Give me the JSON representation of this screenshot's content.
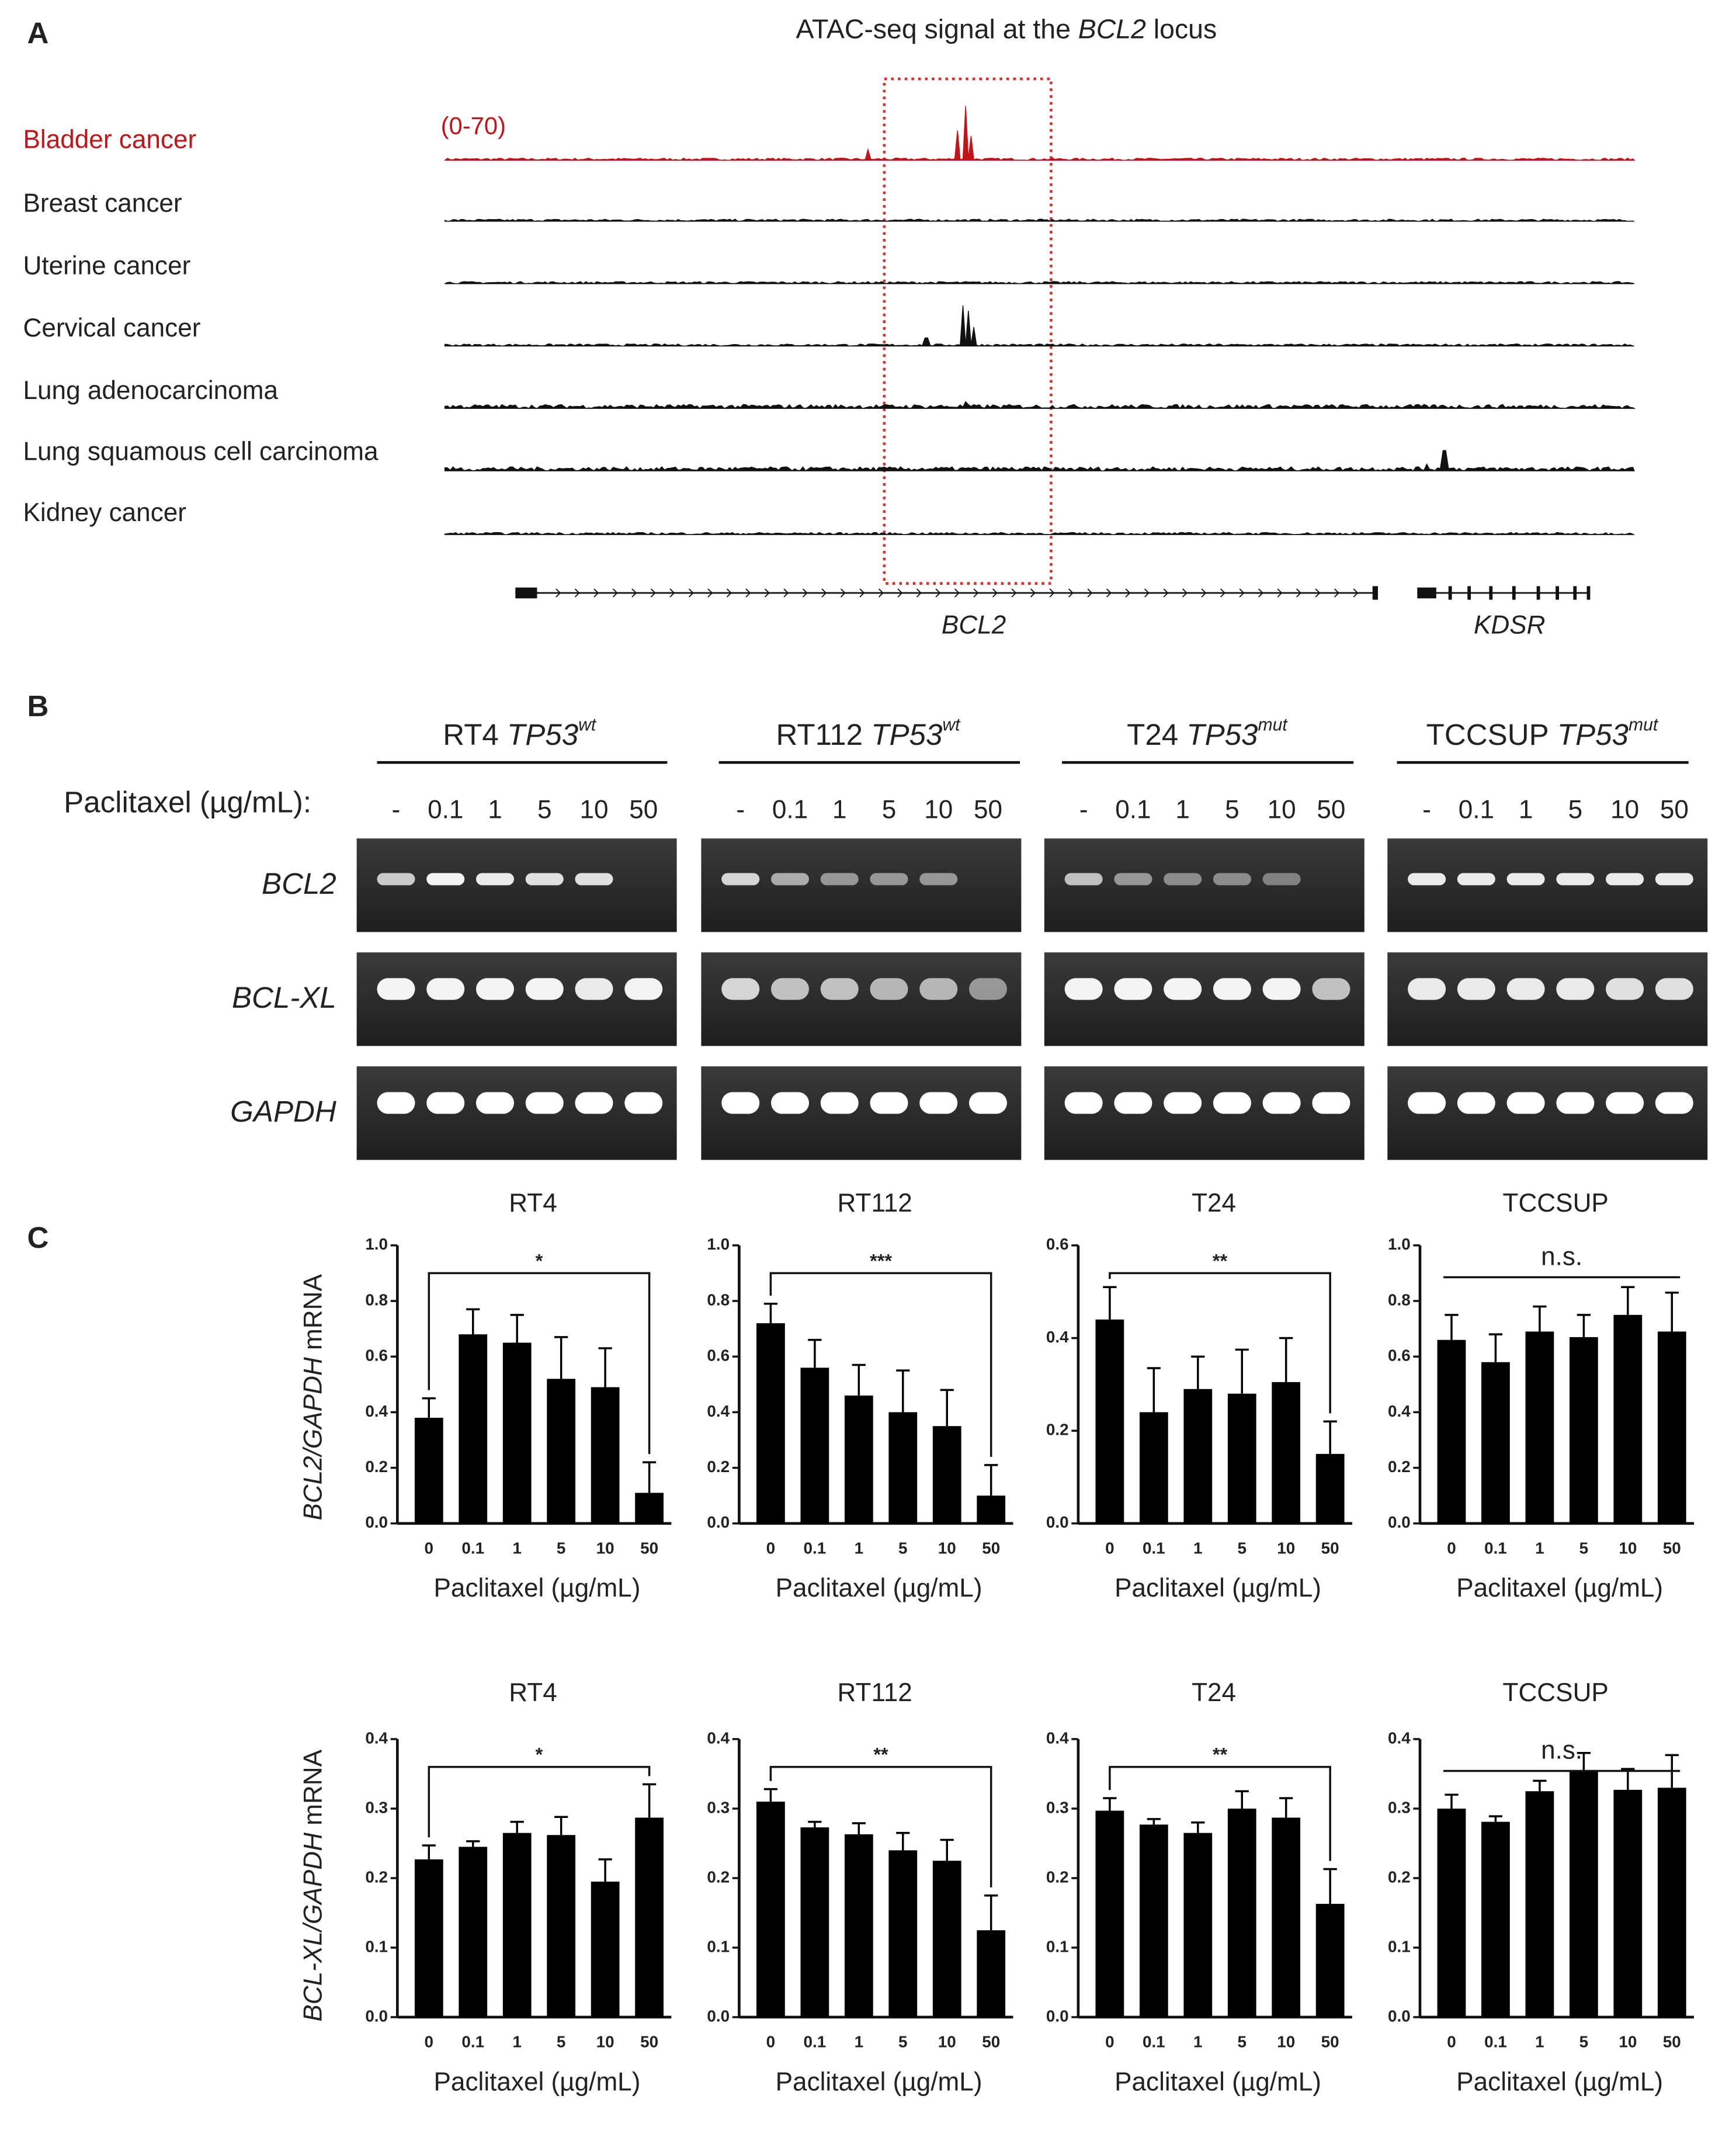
{
  "panel_a": {
    "label": "A",
    "title": {
      "prefix": "ATAC-seq signal at the ",
      "gene": "BCL2",
      "suffix": " locus"
    },
    "range_label": "(0-70)",
    "tracks": [
      "Bladder cancer",
      "Breast cancer",
      "Uterine cancer",
      "Cervical cancer",
      "Lung adenocarcinoma",
      "Lung squamous cell carcinoma",
      "Kidney cancer"
    ],
    "genes": [
      "BCL2",
      "KDSR"
    ]
  },
  "panel_b": {
    "label": "B",
    "treatment_label": "Paclitaxel (µg/mL):",
    "doses": [
      "-",
      "0.1",
      "1",
      "5",
      "10",
      "50"
    ],
    "cell_lines": [
      {
        "name": "RT4",
        "gene": "TP53",
        "status": "wt"
      },
      {
        "name": "RT112",
        "gene": "TP53",
        "status": "wt"
      },
      {
        "name": "T24",
        "gene": "TP53",
        "status": "mut"
      },
      {
        "name": "TCCSUP",
        "gene": "TP53",
        "status": "mut"
      }
    ],
    "genes": [
      "BCL2",
      "BCL-XL",
      "GAPDH"
    ]
  },
  "panel_c_label": "C",
  "chart_data": [
    {
      "type": "bar",
      "title": "RT4",
      "categories": [
        "0",
        "0.1",
        "1",
        "5",
        "10",
        "50"
      ],
      "values": [
        0.38,
        0.68,
        0.65,
        0.52,
        0.49,
        0.11
      ],
      "errors": [
        0.07,
        0.09,
        0.1,
        0.15,
        0.14,
        0.11
      ],
      "color": "#000000",
      "ylim": [
        0,
        1
      ],
      "yticks": [
        {
          "value": 0,
          "label": "0.0"
        },
        {
          "value": 0.2,
          "label": "0.2"
        },
        {
          "value": 0.4,
          "label": "0.4"
        },
        {
          "value": 0.6,
          "label": "0.6"
        },
        {
          "value": 0.8,
          "label": "0.8"
        },
        {
          "value": 1,
          "label": "1.0"
        }
      ],
      "xlabel": "Paclitaxel (µg/mL)",
      "ylabel": [
        {
          "text": "BCL2/GAPDH",
          "italic": true
        },
        {
          "text": " mRNA",
          "italic": false
        }
      ],
      "significance": {
        "label": "*",
        "bracket": true
      }
    },
    {
      "type": "bar",
      "title": "RT112",
      "categories": [
        "0",
        "0.1",
        "1",
        "5",
        "10",
        "50"
      ],
      "values": [
        0.72,
        0.56,
        0.46,
        0.4,
        0.35,
        0.1
      ],
      "errors": [
        0.07,
        0.1,
        0.11,
        0.15,
        0.13,
        0.11
      ],
      "color": "#000000",
      "ylim": [
        0,
        1
      ],
      "yticks": [
        {
          "value": 0,
          "label": "0.0"
        },
        {
          "value": 0.2,
          "label": "0.2"
        },
        {
          "value": 0.4,
          "label": "0.4"
        },
        {
          "value": 0.6,
          "label": "0.6"
        },
        {
          "value": 0.8,
          "label": "0.8"
        },
        {
          "value": 1,
          "label": "1.0"
        }
      ],
      "xlabel": "Paclitaxel (µg/mL)",
      "significance": {
        "label": "***",
        "bracket": true
      }
    },
    {
      "type": "bar",
      "title": "T24",
      "categories": [
        "0",
        "0.1",
        "1",
        "5",
        "10",
        "50"
      ],
      "values": [
        0.44,
        0.24,
        0.29,
        0.28,
        0.305,
        0.15
      ],
      "errors": [
        0.07,
        0.095,
        0.07,
        0.095,
        0.095,
        0.07
      ],
      "color": "#000000",
      "ylim": [
        0,
        0.6
      ],
      "yticks": [
        {
          "value": 0,
          "label": "0.0"
        },
        {
          "value": 0.2,
          "label": "0.2"
        },
        {
          "value": 0.4,
          "label": "0.4"
        },
        {
          "value": 0.6,
          "label": "0.6"
        }
      ],
      "xlabel": "Paclitaxel (µg/mL)",
      "significance": {
        "label": "**",
        "bracket": true
      }
    },
    {
      "type": "bar",
      "title": "TCCSUP",
      "categories": [
        "0",
        "0.1",
        "1",
        "5",
        "10",
        "50"
      ],
      "values": [
        0.66,
        0.58,
        0.69,
        0.67,
        0.75,
        0.69
      ],
      "errors": [
        0.09,
        0.1,
        0.09,
        0.08,
        0.1,
        0.14
      ],
      "color": "#000000",
      "ylim": [
        0,
        1
      ],
      "yticks": [
        {
          "value": 0,
          "label": "0.0"
        },
        {
          "value": 0.2,
          "label": "0.2"
        },
        {
          "value": 0.4,
          "label": "0.4"
        },
        {
          "value": 0.6,
          "label": "0.6"
        },
        {
          "value": 0.8,
          "label": "0.8"
        },
        {
          "value": 1,
          "label": "1.0"
        }
      ],
      "xlabel": "Paclitaxel (µg/mL)",
      "significance": {
        "label": "n.s.",
        "bracket": false
      }
    },
    {
      "type": "bar",
      "title": "RT4",
      "categories": [
        "0",
        "0.1",
        "1",
        "5",
        "10",
        "50"
      ],
      "values": [
        0.227,
        0.245,
        0.265,
        0.262,
        0.195,
        0.287
      ],
      "errors": [
        0.02,
        0.008,
        0.016,
        0.026,
        0.032,
        0.048
      ],
      "color": "#000000",
      "ylim": [
        0,
        0.4
      ],
      "yticks": [
        {
          "value": 0,
          "label": "0.0"
        },
        0.1,
        0.2,
        0.3,
        0.4
      ],
      "xlabel": "Paclitaxel (µg/mL)",
      "ylabel": [
        {
          "text": "BCL-XL/GAPDH",
          "italic": true
        },
        {
          "text": " mRNA",
          "italic": false
        }
      ],
      "significance": {
        "label": "*",
        "bracket": true
      }
    },
    {
      "type": "bar",
      "title": "RT112",
      "categories": [
        "0",
        "0.1",
        "1",
        "5",
        "10",
        "50"
      ],
      "values": [
        0.31,
        0.273,
        0.263,
        0.24,
        0.225,
        0.125
      ],
      "errors": [
        0.018,
        0.008,
        0.016,
        0.025,
        0.03,
        0.05
      ],
      "color": "#000000",
      "ylim": [
        0,
        0.4
      ],
      "yticks": [
        {
          "value": 0,
          "label": "0.0"
        },
        0.1,
        0.2,
        0.3,
        0.4
      ],
      "xlabel": "Paclitaxel (µg/mL)",
      "significance": {
        "label": "**",
        "bracket": true
      }
    },
    {
      "type": "bar",
      "title": "T24",
      "categories": [
        "0",
        "0.1",
        "1",
        "5",
        "10",
        "50"
      ],
      "values": [
        0.297,
        0.277,
        0.265,
        0.3,
        0.287,
        0.163
      ],
      "errors": [
        0.018,
        0.008,
        0.015,
        0.025,
        0.028,
        0.05
      ],
      "color": "#000000",
      "ylim": [
        0,
        0.4
      ],
      "yticks": [
        {
          "value": 0,
          "label": "0.0"
        },
        0.1,
        0.2,
        0.3,
        0.4
      ],
      "xlabel": "Paclitaxel (µg/mL)",
      "significance": {
        "label": "**",
        "bracket": true
      }
    },
    {
      "type": "bar",
      "title": "TCCSUP",
      "categories": [
        "0",
        "0.1",
        "1",
        "5",
        "10",
        "50"
      ],
      "values": [
        0.3,
        0.281,
        0.325,
        0.355,
        0.327,
        0.33
      ],
      "errors": [
        0.02,
        0.008,
        0.015,
        0.025,
        0.03,
        0.047
      ],
      "color": "#000000",
      "ylim": [
        0,
        0.4
      ],
      "yticks": [
        {
          "value": 0,
          "label": "0.0"
        },
        0.1,
        0.2,
        0.3,
        0.4
      ],
      "xlabel": "Paclitaxel (µg/mL)",
      "significance": {
        "label": "n.s.",
        "bracket": false
      }
    }
  ]
}
